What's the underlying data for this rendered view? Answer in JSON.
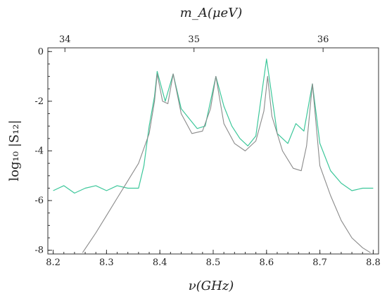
{
  "chart_data": {
    "type": "line",
    "xlabel": "ν(GHz)",
    "ylabel": "log₁₀ |S₁₂|",
    "top_axis_label": "m_A(μeV)",
    "xlim": [
      8.19,
      8.81
    ],
    "ylim": [
      -8.15,
      0.15
    ],
    "x_ticks": [
      8.2,
      8.3,
      8.4,
      8.5,
      8.6,
      8.7,
      8.8
    ],
    "x_tick_labels": [
      "8.2",
      "8.3",
      "8.4",
      "8.5",
      "8.6",
      "8.7",
      "8.8"
    ],
    "y_ticks": [
      0,
      -2,
      -4,
      -6,
      -8
    ],
    "y_tick_labels": [
      "0",
      "-2",
      "-4",
      "-6",
      "-8"
    ],
    "top_ticks_freq": [
      8.222,
      8.464,
      8.706
    ],
    "top_tick_labels": [
      "34",
      "35",
      "36"
    ],
    "grid": false,
    "legend": "none",
    "series": [
      {
        "kind": "measured (noisy)",
        "color": "#3cc79a",
        "x": [
          8.2,
          8.22,
          8.24,
          8.26,
          8.28,
          8.3,
          8.32,
          8.34,
          8.36,
          8.37,
          8.38,
          8.39,
          8.395,
          8.41,
          8.425,
          8.44,
          8.455,
          8.47,
          8.485,
          8.505,
          8.52,
          8.535,
          8.55,
          8.565,
          8.58,
          8.6,
          8.62,
          8.64,
          8.655,
          8.67,
          8.686,
          8.7,
          8.72,
          8.74,
          8.76,
          8.78,
          8.8
        ],
        "y": [
          -5.6,
          -5.4,
          -5.7,
          -5.5,
          -5.4,
          -5.6,
          -5.4,
          -5.5,
          -5.5,
          -4.6,
          -3.0,
          -1.8,
          -0.8,
          -2.0,
          -0.9,
          -2.3,
          -2.7,
          -3.1,
          -3.0,
          -1.0,
          -2.2,
          -3.0,
          -3.5,
          -3.8,
          -3.4,
          -0.3,
          -3.3,
          -3.7,
          -2.9,
          -3.2,
          -1.3,
          -3.7,
          -4.8,
          -5.3,
          -5.6,
          -5.5,
          -5.5
        ]
      },
      {
        "kind": "model (smooth)",
        "color": "#8a8a8a",
        "x": [
          8.255,
          8.28,
          8.3,
          8.32,
          8.34,
          8.36,
          8.38,
          8.39,
          8.395,
          8.405,
          8.415,
          8.425,
          8.44,
          8.46,
          8.48,
          8.495,
          8.505,
          8.52,
          8.54,
          8.56,
          8.58,
          8.595,
          8.602,
          8.61,
          8.63,
          8.65,
          8.665,
          8.675,
          8.686,
          8.7,
          8.72,
          8.74,
          8.76,
          8.78,
          8.795
        ],
        "y": [
          -8.1,
          -7.3,
          -6.6,
          -5.9,
          -5.2,
          -4.5,
          -3.3,
          -2.0,
          -0.9,
          -2.0,
          -2.1,
          -0.9,
          -2.5,
          -3.3,
          -3.2,
          -2.3,
          -1.0,
          -2.9,
          -3.7,
          -4.0,
          -3.6,
          -2.4,
          -1.0,
          -2.6,
          -4.0,
          -4.7,
          -4.8,
          -3.8,
          -1.3,
          -4.6,
          -5.8,
          -6.8,
          -7.5,
          -7.9,
          -8.1
        ]
      }
    ]
  }
}
